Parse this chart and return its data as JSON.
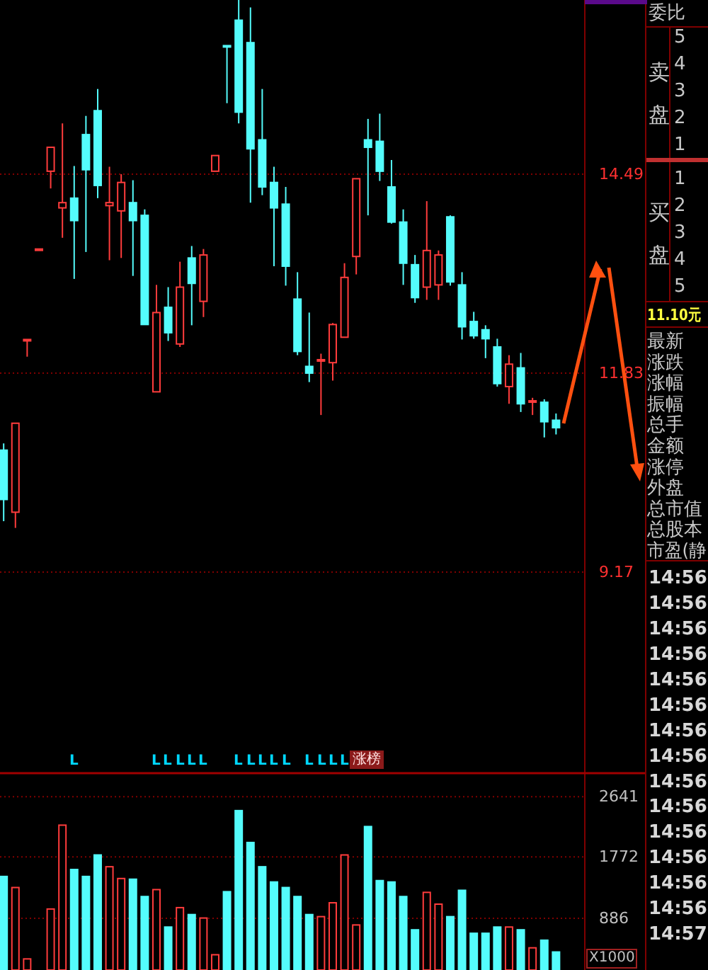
{
  "chart_data": [
    {
      "type": "candlestick",
      "categories": [
        null,
        null,
        null,
        null,
        null,
        null,
        null,
        null,
        null,
        null,
        null,
        null,
        null,
        null,
        null,
        null,
        null,
        null,
        null,
        null,
        null,
        null,
        null,
        null,
        null,
        null,
        null,
        null,
        null,
        null,
        null,
        null,
        null,
        null,
        null,
        null,
        null,
        null,
        null,
        null,
        null,
        null,
        null,
        null,
        null,
        null,
        null,
        null
      ],
      "ohlc": [
        [
          10.8,
          10.89,
          9.85,
          10.14
        ],
        [
          9.97,
          11.16,
          9.76,
          11.16
        ],
        [
          12.28,
          12.28,
          12.05,
          12.28
        ],
        [
          13.49,
          13.49,
          13.49,
          13.49
        ],
        [
          14.53,
          14.85,
          14.3,
          14.85
        ],
        [
          14.04,
          15.17,
          13.64,
          14.11
        ],
        [
          14.17,
          14.6,
          13.09,
          13.87
        ],
        [
          15.02,
          15.27,
          13.45,
          14.55
        ],
        [
          15.34,
          15.63,
          14.17,
          14.34
        ],
        [
          14.07,
          14.59,
          13.34,
          14.11
        ],
        [
          14.0,
          14.49,
          13.37,
          14.38
        ],
        [
          14.11,
          14.41,
          13.13,
          13.87
        ],
        [
          13.94,
          14.02,
          12.48,
          12.48
        ],
        [
          11.58,
          13.01,
          11.58,
          12.64
        ],
        [
          12.71,
          12.98,
          12.26,
          12.37
        ],
        [
          12.22,
          13.32,
          12.18,
          12.98
        ],
        [
          13.37,
          13.53,
          12.47,
          13.03
        ],
        [
          12.79,
          13.49,
          12.58,
          13.41
        ],
        [
          14.53,
          14.74,
          14.53,
          14.74
        ],
        [
          16.21,
          16.21,
          15.44,
          16.21
        ],
        [
          16.55,
          16.82,
          15.17,
          15.32
        ],
        [
          16.25,
          16.72,
          14.11,
          14.83
        ],
        [
          14.95,
          15.63,
          14.21,
          14.32
        ],
        [
          14.38,
          14.59,
          13.26,
          14.04
        ],
        [
          14.09,
          14.32,
          13.0,
          13.26
        ],
        [
          12.82,
          13.18,
          12.07,
          12.12
        ],
        [
          11.92,
          12.64,
          11.71,
          11.83
        ],
        [
          12.01,
          12.09,
          11.27,
          12.01
        ],
        [
          11.97,
          12.5,
          11.73,
          12.48
        ],
        [
          12.31,
          13.3,
          12.31,
          13.11
        ],
        [
          13.39,
          14.43,
          13.15,
          14.43
        ],
        [
          14.95,
          15.23,
          13.94,
          14.85
        ],
        [
          14.93,
          15.3,
          14.4,
          14.53
        ],
        [
          14.32,
          14.68,
          13.83,
          13.85
        ],
        [
          13.85,
          14.02,
          13.01,
          13.3
        ],
        [
          13.28,
          13.41,
          12.77,
          12.84
        ],
        [
          12.98,
          14.13,
          12.81,
          13.47
        ],
        [
          13.01,
          13.47,
          12.81,
          13.41
        ],
        [
          13.92,
          13.94,
          13.0,
          13.05
        ],
        [
          13.01,
          13.18,
          12.28,
          12.45
        ],
        [
          12.52,
          12.65,
          12.29,
          12.33
        ],
        [
          12.41,
          12.47,
          12.03,
          12.29
        ],
        [
          12.18,
          12.29,
          11.65,
          11.69
        ],
        [
          11.65,
          12.07,
          11.42,
          11.95
        ],
        [
          11.9,
          12.1,
          11.31,
          11.42
        ],
        [
          11.46,
          11.5,
          11.27,
          11.46
        ],
        [
          11.44,
          11.48,
          10.97,
          11.18
        ],
        [
          11.2,
          11.29,
          11.01,
          11.1
        ]
      ],
      "colors": [
        "#54fcfc",
        "#ff3c3c",
        "#ff3c3c",
        "#ff3c3c",
        "#ff3c3c",
        "#ff3c3c",
        "#54fcfc",
        "#54fcfc",
        "#54fcfc",
        "#ff3c3c",
        "#ff3c3c",
        "#54fcfc",
        "#54fcfc",
        "#ff3c3c",
        "#54fcfc",
        "#ff3c3c",
        "#54fcfc",
        "#ff3c3c",
        "#ff3c3c",
        "#54fcfc",
        "#54fcfc",
        "#54fcfc",
        "#54fcfc",
        "#54fcfc",
        "#54fcfc",
        "#54fcfc",
        "#54fcfc",
        "#ff3c3c",
        "#ff3c3c",
        "#ff3c3c",
        "#ff3c3c",
        "#54fcfc",
        "#54fcfc",
        "#54fcfc",
        "#54fcfc",
        "#54fcfc",
        "#ff3c3c",
        "#ff3c3c",
        "#54fcfc",
        "#54fcfc",
        "#54fcfc",
        "#54fcfc",
        "#54fcfc",
        "#ff3c3c",
        "#54fcfc",
        "#ff3c3c",
        "#54fcfc",
        "#54fcfc"
      ],
      "ylim": [
        6.48,
        16.82
      ],
      "yticks": [
        9.17,
        11.83,
        14.49
      ],
      "grid": "y",
      "annotations": [
        "L",
        "L",
        "L",
        "L",
        "L",
        "L",
        "L",
        "L",
        "L",
        "L",
        "L",
        "L",
        "L",
        "L",
        "L",
        "涨榜"
      ]
    },
    {
      "type": "bar",
      "categories": [
        null,
        null,
        null,
        null,
        null,
        null,
        null,
        null,
        null,
        null,
        null,
        null,
        null,
        null,
        null,
        null,
        null,
        null,
        null,
        null,
        null,
        null,
        null,
        null,
        null,
        null,
        null,
        null,
        null,
        null,
        null,
        null,
        null,
        null,
        null,
        null,
        null,
        null,
        null,
        null,
        null,
        null,
        null,
        null,
        null,
        null,
        null,
        null
      ],
      "values": [
        1490,
        1330,
        300,
        null,
        1020,
        2230,
        1590,
        1490,
        1800,
        1630,
        1460,
        1450,
        1200,
        1300,
        760,
        1040,
        940,
        890,
        360,
        1270,
        2440,
        1980,
        1630,
        1410,
        1330,
        1200,
        940,
        910,
        1110,
        1800,
        790,
        2210,
        1430,
        1410,
        1200,
        720,
        1260,
        1090,
        910,
        1290,
        670,
        670,
        760,
        760,
        720,
        460,
        570,
        400
      ],
      "colors": [
        "#54fcfc",
        "#ff3c3c",
        "#ff3c3c",
        "#ff3c3c",
        "#ff3c3c",
        "#ff3c3c",
        "#54fcfc",
        "#54fcfc",
        "#54fcfc",
        "#ff3c3c",
        "#ff3c3c",
        "#54fcfc",
        "#54fcfc",
        "#ff3c3c",
        "#54fcfc",
        "#ff3c3c",
        "#54fcfc",
        "#ff3c3c",
        "#ff3c3c",
        "#54fcfc",
        "#54fcfc",
        "#54fcfc",
        "#54fcfc",
        "#54fcfc",
        "#54fcfc",
        "#54fcfc",
        "#54fcfc",
        "#ff3c3c",
        "#ff3c3c",
        "#ff3c3c",
        "#ff3c3c",
        "#54fcfc",
        "#54fcfc",
        "#54fcfc",
        "#54fcfc",
        "#54fcfc",
        "#ff3c3c",
        "#ff3c3c",
        "#54fcfc",
        "#54fcfc",
        "#54fcfc",
        "#54fcfc",
        "#54fcfc",
        "#ff3c3c",
        "#54fcfc",
        "#ff3c3c",
        "#54fcfc",
        "#54fcfc"
      ],
      "ylim": [
        140,
        2980
      ],
      "yticks": [
        886,
        1772,
        2641
      ],
      "grid": "y",
      "annotations": [
        "X1000"
      ]
    },
    {
      "type": "other",
      "annotations": [
        "委比",
        "卖盘",
        "5",
        "4",
        "3",
        "2",
        "1",
        "买盘",
        "1",
        "2",
        "3",
        "4",
        "5",
        "11.10元",
        "最新",
        "涨跌",
        "涨幅",
        "振幅",
        "总手",
        "金额",
        "涨停",
        "外盘",
        "总市值",
        "总股本",
        "市盈(静",
        "14:56",
        "14:56",
        "14:56",
        "14:56",
        "14:56",
        "14:56",
        "14:56",
        "14:56",
        "14:56",
        "14:56",
        "14:56",
        "14:56",
        "14:56",
        "14:56",
        "14:57"
      ]
    }
  ]
}
